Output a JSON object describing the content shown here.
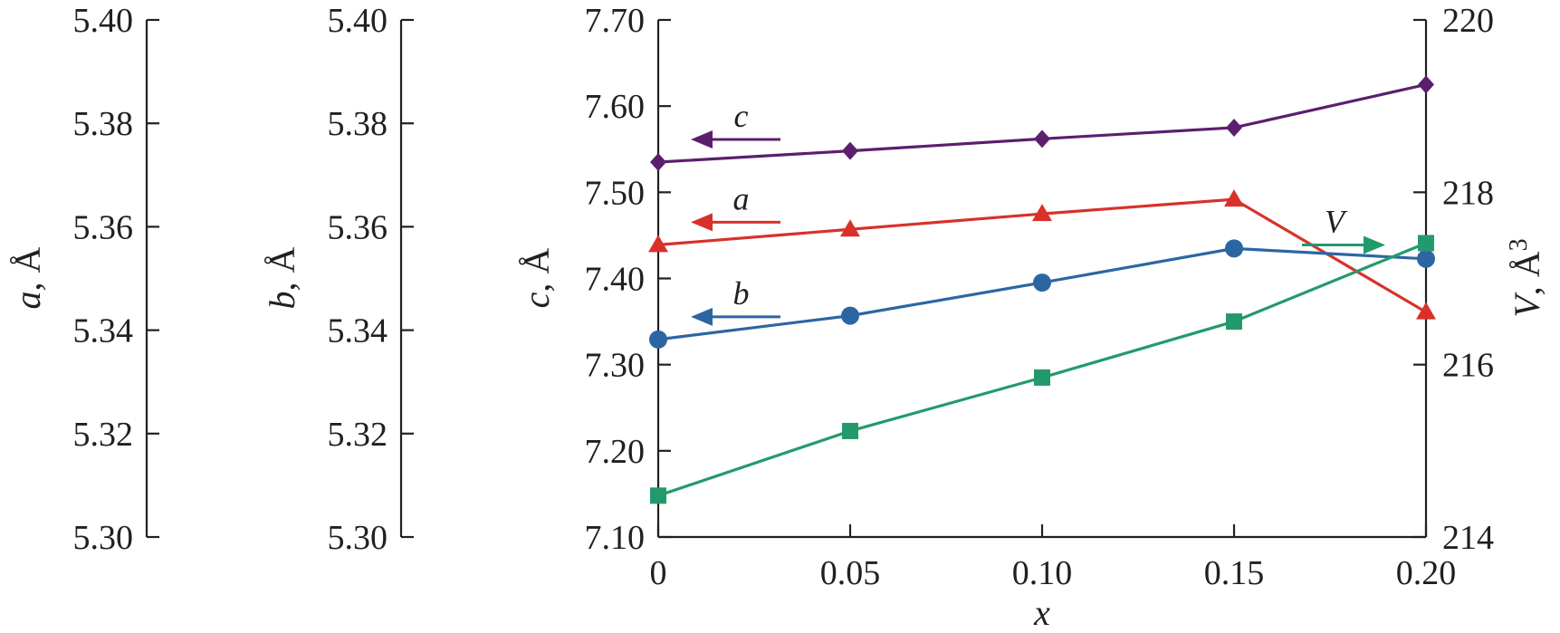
{
  "chart_data": {
    "type": "line",
    "x": [
      0,
      0.05,
      0.1,
      0.15,
      0.2
    ],
    "xlabel": "x",
    "x_tick_labels": [
      "0",
      "0.05",
      "0.10",
      "0.15",
      "0.20"
    ],
    "xlim": [
      0,
      0.2
    ],
    "axes": {
      "a": {
        "label_var": "a",
        "label_unit": ", Å",
        "ylim": [
          5.3,
          5.4
        ],
        "ticks": [
          "5.40",
          "5.38",
          "5.36",
          "5.34",
          "5.32",
          "5.30"
        ],
        "tick_values": [
          5.4,
          5.38,
          5.36,
          5.34,
          5.32,
          5.3
        ]
      },
      "b": {
        "label_var": "b",
        "label_unit": ", Å",
        "ylim": [
          5.3,
          5.4
        ],
        "ticks": [
          "5.40",
          "5.38",
          "5.36",
          "5.34",
          "5.32",
          "5.30"
        ],
        "tick_values": [
          5.4,
          5.38,
          5.36,
          5.34,
          5.32,
          5.3
        ]
      },
      "c": {
        "label_var": "c",
        "label_unit": ", Å",
        "ylim": [
          7.1,
          7.7
        ],
        "ticks": [
          "7.70",
          "7.60",
          "7.50",
          "7.40",
          "7.30",
          "7.20",
          "7.10"
        ],
        "tick_values": [
          7.7,
          7.6,
          7.5,
          7.4,
          7.3,
          7.2,
          7.1
        ]
      },
      "V": {
        "label_var": "V",
        "label_unit": ", Å",
        "label_sup": "3",
        "ylim": [
          214,
          220
        ],
        "ticks": [
          "220",
          "218",
          "216",
          "214"
        ],
        "tick_values": [
          220,
          218,
          216,
          214
        ]
      }
    },
    "series": [
      {
        "name": "c",
        "axis": "c",
        "marker": "diamond",
        "color": "#5b1f6e",
        "values": [
          7.535,
          7.548,
          7.562,
          7.575,
          7.625
        ]
      },
      {
        "name": "a",
        "axis": "a",
        "marker": "triangle",
        "color": "#d8312a",
        "values": [
          5.3565,
          5.3595,
          5.3625,
          5.3653,
          5.3435
        ]
      },
      {
        "name": "b",
        "axis": "b",
        "marker": "circle",
        "color": "#2b66a3",
        "values": [
          5.3382,
          5.3428,
          5.3492,
          5.3558,
          5.3538
        ]
      },
      {
        "name": "V",
        "axis": "V",
        "marker": "square",
        "color": "#239a6c",
        "values": [
          214.48,
          215.23,
          215.85,
          216.5,
          217.41
        ]
      }
    ],
    "annotations": [
      {
        "label": "c",
        "series": "c",
        "direction": "left"
      },
      {
        "label": "a",
        "series": "a",
        "direction": "left"
      },
      {
        "label": "b",
        "series": "b",
        "direction": "left"
      },
      {
        "label": "V",
        "series": "V",
        "direction": "right"
      }
    ]
  }
}
